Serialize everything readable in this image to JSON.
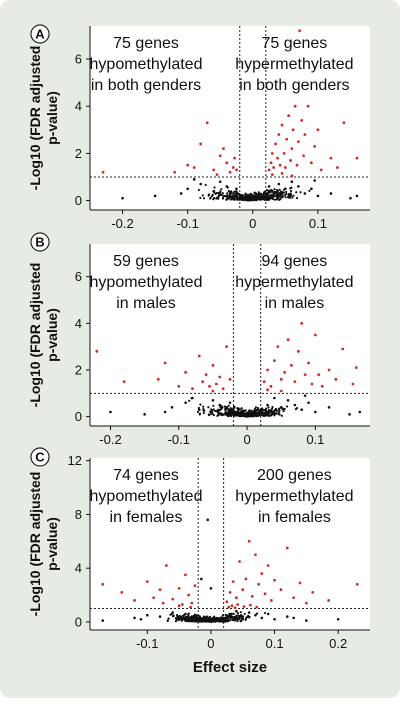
{
  "figure": {
    "background": "#e6ece4",
    "plot_background": "#ffffff",
    "point_colors": {
      "significant": "#d42a2a",
      "not_significant": "#111111"
    },
    "xlabel": "Effect size",
    "ylabel": "-Log10 (FDR adjusted p-value)"
  },
  "chart_data": [
    {
      "type": "scatter",
      "panel_label": "A",
      "xlim": [
        -0.25,
        0.18
      ],
      "ylim": [
        -0.4,
        7.4
      ],
      "x_ticks": [
        -0.2,
        -0.1,
        0,
        0.1
      ],
      "x_tick_labels": [
        "-0.2",
        "-0.1",
        "0",
        "0.1"
      ],
      "y_ticks": [
        0,
        2,
        4,
        6
      ],
      "y_tick_labels": [
        "0",
        "2",
        "4",
        "6"
      ],
      "effect_threshold": [
        -0.02,
        0.02
      ],
      "significance_threshold": 1.0,
      "annotations": [
        {
          "position": "upper-left",
          "lines": [
            "75 genes",
            "hypomethylated",
            "in both genders"
          ]
        },
        {
          "position": "upper-right",
          "lines": [
            "75 genes",
            "hypermethylated",
            "in both genders"
          ]
        }
      ],
      "points": {
        "significant": [
          [
            -0.23,
            1.2
          ],
          [
            -0.12,
            1.2
          ],
          [
            -0.1,
            1.5
          ],
          [
            -0.09,
            1.4
          ],
          [
            -0.08,
            2.4
          ],
          [
            -0.07,
            3.3
          ],
          [
            -0.06,
            1.3
          ],
          [
            -0.05,
            1.9
          ],
          [
            -0.045,
            2.2
          ],
          [
            -0.04,
            1.6
          ],
          [
            -0.035,
            1.2
          ],
          [
            -0.03,
            1.4
          ],
          [
            -0.028,
            1.8
          ],
          [
            -0.025,
            1.3
          ],
          [
            0.025,
            1.3
          ],
          [
            0.028,
            1.6
          ],
          [
            0.03,
            2.0
          ],
          [
            0.032,
            1.4
          ],
          [
            0.035,
            2.4
          ],
          [
            0.038,
            1.8
          ],
          [
            0.04,
            2.8
          ],
          [
            0.042,
            1.5
          ],
          [
            0.045,
            3.2
          ],
          [
            0.048,
            2.0
          ],
          [
            0.05,
            1.4
          ],
          [
            0.052,
            2.6
          ],
          [
            0.055,
            3.6
          ],
          [
            0.058,
            1.7
          ],
          [
            0.06,
            2.2
          ],
          [
            0.062,
            3.0
          ],
          [
            0.065,
            4.0
          ],
          [
            0.068,
            1.5
          ],
          [
            0.07,
            2.5
          ],
          [
            0.072,
            7.2
          ],
          [
            0.075,
            3.4
          ],
          [
            0.078,
            1.9
          ],
          [
            0.08,
            2.8
          ],
          [
            0.085,
            4.0
          ],
          [
            0.09,
            1.6
          ],
          [
            0.095,
            2.3
          ],
          [
            0.1,
            3.0
          ],
          [
            0.105,
            1.3
          ],
          [
            0.12,
            1.8
          ],
          [
            0.13,
            1.4
          ],
          [
            0.14,
            3.3
          ],
          [
            0.16,
            1.8
          ],
          [
            0.03,
            1.1
          ],
          [
            0.045,
            1.15
          ],
          [
            0.06,
            1.05
          ],
          [
            -0.055,
            1.1
          ]
        ],
        "not_significant": [
          [
            -0.2,
            0.1
          ],
          [
            -0.15,
            0.2
          ],
          [
            -0.1,
            0.5
          ],
          [
            -0.08,
            0.7
          ],
          [
            -0.06,
            0.4
          ],
          [
            -0.05,
            0.8
          ],
          [
            -0.04,
            0.6
          ],
          [
            -0.03,
            0.3
          ],
          [
            -0.02,
            0.2
          ],
          [
            -0.01,
            0.1
          ],
          [
            0.0,
            0.05
          ],
          [
            0.01,
            0.1
          ],
          [
            0.02,
            0.2
          ],
          [
            0.03,
            0.4
          ],
          [
            0.04,
            0.7
          ],
          [
            0.05,
            0.5
          ],
          [
            0.06,
            0.8
          ],
          [
            0.07,
            0.6
          ],
          [
            0.08,
            0.3
          ],
          [
            0.09,
            0.5
          ],
          [
            0.1,
            0.2
          ],
          [
            0.12,
            0.3
          ],
          [
            0.15,
            0.1
          ],
          [
            0.16,
            0.2
          ],
          [
            -0.11,
            0.3
          ],
          [
            -0.09,
            0.9
          ],
          [
            0.095,
            0.85
          ],
          [
            -0.025,
            0.5
          ],
          [
            0.025,
            0.6
          ]
        ]
      }
    },
    {
      "type": "scatter",
      "panel_label": "B",
      "xlim": [
        -0.23,
        0.18
      ],
      "ylim": [
        -0.4,
        7.4
      ],
      "x_ticks": [
        -0.2,
        -0.1,
        0,
        0.1
      ],
      "x_tick_labels": [
        "-0.2",
        "-0.1",
        "0",
        "0.1"
      ],
      "y_ticks": [
        0,
        2,
        4,
        6
      ],
      "y_tick_labels": [
        "0",
        "2",
        "4",
        "6"
      ],
      "effect_threshold": [
        -0.02,
        0.02
      ],
      "significance_threshold": 1.0,
      "annotations": [
        {
          "position": "upper-left",
          "lines": [
            "59 genes",
            "hypomethylated",
            "in males"
          ]
        },
        {
          "position": "upper-right",
          "lines": [
            "94 genes",
            "hypermethylated",
            "in males"
          ]
        }
      ],
      "points": {
        "significant": [
          [
            -0.22,
            2.8
          ],
          [
            -0.18,
            1.5
          ],
          [
            -0.13,
            1.6
          ],
          [
            -0.12,
            2.3
          ],
          [
            -0.1,
            1.3
          ],
          [
            -0.09,
            1.9
          ],
          [
            -0.08,
            1.2
          ],
          [
            -0.07,
            2.6
          ],
          [
            -0.065,
            1.5
          ],
          [
            -0.06,
            1.8
          ],
          [
            -0.055,
            1.3
          ],
          [
            -0.05,
            2.2
          ],
          [
            -0.045,
            1.4
          ],
          [
            -0.04,
            1.7
          ],
          [
            -0.035,
            1.2
          ],
          [
            -0.03,
            3.0
          ],
          [
            -0.025,
            1.6
          ],
          [
            0.025,
            1.5
          ],
          [
            0.03,
            2.0
          ],
          [
            0.035,
            1.3
          ],
          [
            0.04,
            2.4
          ],
          [
            0.045,
            3.0
          ],
          [
            0.05,
            1.6
          ],
          [
            0.055,
            1.9
          ],
          [
            0.06,
            3.3
          ],
          [
            0.065,
            2.2
          ],
          [
            0.07,
            1.5
          ],
          [
            0.075,
            2.8
          ],
          [
            0.08,
            4.0
          ],
          [
            0.085,
            1.8
          ],
          [
            0.09,
            2.3
          ],
          [
            0.095,
            1.4
          ],
          [
            0.1,
            3.5
          ],
          [
            0.105,
            1.8
          ],
          [
            0.11,
            1.3
          ],
          [
            0.12,
            2.0
          ],
          [
            0.13,
            1.6
          ],
          [
            0.14,
            2.9
          ],
          [
            0.155,
            1.4
          ],
          [
            0.16,
            2.1
          ],
          [
            0.03,
            1.15
          ],
          [
            0.05,
            1.1
          ],
          [
            -0.05,
            1.1
          ]
        ],
        "not_significant": [
          [
            -0.2,
            0.2
          ],
          [
            -0.15,
            0.1
          ],
          [
            -0.11,
            0.4
          ],
          [
            -0.09,
            0.6
          ],
          [
            -0.07,
            0.3
          ],
          [
            -0.05,
            0.7
          ],
          [
            -0.04,
            0.5
          ],
          [
            -0.03,
            0.4
          ],
          [
            -0.02,
            0.2
          ],
          [
            -0.01,
            0.1
          ],
          [
            0.0,
            0.05
          ],
          [
            0.01,
            0.1
          ],
          [
            0.02,
            0.3
          ],
          [
            0.03,
            0.5
          ],
          [
            0.04,
            0.8
          ],
          [
            0.05,
            0.4
          ],
          [
            0.06,
            0.7
          ],
          [
            0.07,
            0.5
          ],
          [
            0.08,
            0.3
          ],
          [
            0.09,
            0.6
          ],
          [
            0.1,
            0.2
          ],
          [
            0.12,
            0.4
          ],
          [
            0.15,
            0.1
          ],
          [
            0.165,
            0.2
          ],
          [
            -0.12,
            0.2
          ],
          [
            -0.08,
            0.8
          ],
          [
            0.085,
            0.9
          ],
          [
            -0.025,
            0.6
          ]
        ]
      }
    },
    {
      "type": "scatter",
      "panel_label": "C",
      "xlim": [
        -0.19,
        0.25
      ],
      "ylim": [
        -0.6,
        12.2
      ],
      "x_ticks": [
        -0.1,
        0,
        0.1,
        0.2
      ],
      "x_tick_labels": [
        "-0.1",
        "0",
        "0.1",
        "0.2"
      ],
      "y_ticks": [
        0,
        4,
        8,
        12
      ],
      "y_tick_labels": [
        "0",
        "4",
        "8",
        "12"
      ],
      "effect_threshold": [
        -0.02,
        0.02
      ],
      "significance_threshold": 1.0,
      "annotations": [
        {
          "position": "upper-left",
          "lines": [
            "74 genes",
            "hypomethylated",
            "in females"
          ]
        },
        {
          "position": "upper-right",
          "lines": [
            "200 genes",
            "hypermethylated",
            "in females"
          ]
        }
      ],
      "points": {
        "significant": [
          [
            -0.17,
            2.8
          ],
          [
            -0.14,
            2.2
          ],
          [
            -0.12,
            1.6
          ],
          [
            -0.1,
            3.0
          ],
          [
            -0.09,
            1.8
          ],
          [
            -0.08,
            2.4
          ],
          [
            -0.075,
            1.4
          ],
          [
            -0.07,
            4.2
          ],
          [
            -0.06,
            1.7
          ],
          [
            -0.05,
            2.5
          ],
          [
            -0.045,
            1.3
          ],
          [
            -0.04,
            3.5
          ],
          [
            -0.035,
            2.0
          ],
          [
            -0.03,
            1.4
          ],
          [
            -0.025,
            2.7
          ],
          [
            0.025,
            1.5
          ],
          [
            0.03,
            2.2
          ],
          [
            0.035,
            3.0
          ],
          [
            0.04,
            1.8
          ],
          [
            0.045,
            4.5
          ],
          [
            0.05,
            2.4
          ],
          [
            0.055,
            3.2
          ],
          [
            0.06,
            6.0
          ],
          [
            0.065,
            1.9
          ],
          [
            0.07,
            5.0
          ],
          [
            0.075,
            2.8
          ],
          [
            0.08,
            3.6
          ],
          [
            0.085,
            2.1
          ],
          [
            0.09,
            4.2
          ],
          [
            0.095,
            1.6
          ],
          [
            0.1,
            3.1
          ],
          [
            0.11,
            2.4
          ],
          [
            0.12,
            5.5
          ],
          [
            0.13,
            1.8
          ],
          [
            0.14,
            2.9
          ],
          [
            0.15,
            1.4
          ],
          [
            0.16,
            2.2
          ],
          [
            0.185,
            1.6
          ],
          [
            0.23,
            2.8
          ],
          [
            0.028,
            1.1
          ],
          [
            0.033,
            1.2
          ],
          [
            0.038,
            1.05
          ],
          [
            0.042,
            1.3
          ],
          [
            0.052,
            1.15
          ],
          [
            0.062,
            1.25
          ],
          [
            0.072,
            1.1
          ],
          [
            -0.032,
            1.1
          ],
          [
            -0.05,
            1.2
          ]
        ],
        "not_significant": [
          [
            -0.17,
            0.1
          ],
          [
            -0.12,
            0.3
          ],
          [
            -0.1,
            0.5
          ],
          [
            -0.08,
            0.4
          ],
          [
            -0.06,
            0.7
          ],
          [
            -0.05,
            0.3
          ],
          [
            -0.04,
            0.6
          ],
          [
            -0.03,
            0.4
          ],
          [
            -0.02,
            0.2
          ],
          [
            -0.01,
            0.1
          ],
          [
            0.0,
            0.05
          ],
          [
            0.01,
            0.1
          ],
          [
            0.02,
            0.3
          ],
          [
            0.03,
            0.5
          ],
          [
            0.04,
            0.8
          ],
          [
            0.05,
            0.4
          ],
          [
            0.06,
            0.7
          ],
          [
            0.07,
            0.5
          ],
          [
            0.08,
            0.3
          ],
          [
            0.09,
            0.6
          ],
          [
            0.1,
            0.2
          ],
          [
            0.12,
            0.4
          ],
          [
            0.15,
            0.1
          ],
          [
            0.2,
            0.2
          ],
          [
            -0.005,
            7.6
          ],
          [
            0.0,
            2.5
          ],
          [
            -0.015,
            3.2
          ],
          [
            -0.11,
            0.2
          ],
          [
            0.13,
            0.3
          ]
        ]
      }
    }
  ]
}
